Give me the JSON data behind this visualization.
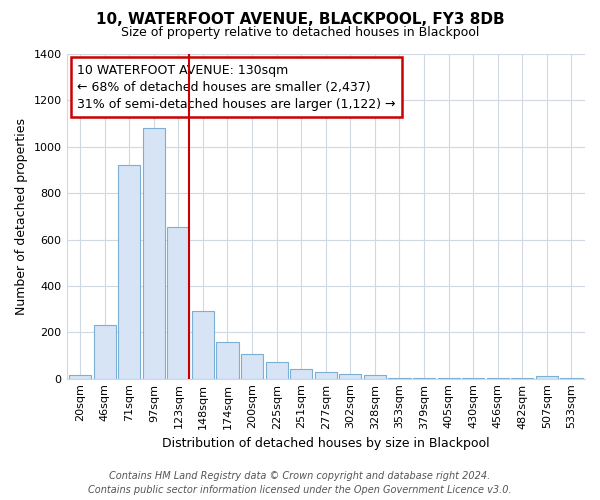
{
  "title": "10, WATERFOOT AVENUE, BLACKPOOL, FY3 8DB",
  "subtitle": "Size of property relative to detached houses in Blackpool",
  "xlabel": "Distribution of detached houses by size in Blackpool",
  "ylabel": "Number of detached properties",
  "bar_labels": [
    "20sqm",
    "46sqm",
    "71sqm",
    "97sqm",
    "123sqm",
    "148sqm",
    "174sqm",
    "200sqm",
    "225sqm",
    "251sqm",
    "277sqm",
    "302sqm",
    "328sqm",
    "353sqm",
    "379sqm",
    "405sqm",
    "430sqm",
    "456sqm",
    "482sqm",
    "507sqm",
    "533sqm"
  ],
  "bar_values": [
    15,
    230,
    920,
    1080,
    655,
    290,
    158,
    108,
    70,
    42,
    27,
    20,
    17,
    5,
    3,
    2,
    1,
    1,
    1,
    13,
    2
  ],
  "bar_color": "#d6e4f5",
  "bar_edge_color": "#7bafd4",
  "vline_index": 4,
  "vline_color": "#cc0000",
  "annotation_line1": "10 WATERFOOT AVENUE: 130sqm",
  "annotation_line2": "← 68% of detached houses are smaller (2,437)",
  "annotation_line3": "31% of semi-detached houses are larger (1,122) →",
  "annotation_box_color": "#ffffff",
  "annotation_box_edge_color": "#cc0000",
  "ylim": [
    0,
    1400
  ],
  "yticks": [
    0,
    200,
    400,
    600,
    800,
    1000,
    1200,
    1400
  ],
  "footer_line1": "Contains HM Land Registry data © Crown copyright and database right 2024.",
  "footer_line2": "Contains public sector information licensed under the Open Government Licence v3.0.",
  "bg_color": "#ffffff",
  "grid_color": "#d0d8e4",
  "title_fontsize": 11,
  "subtitle_fontsize": 9,
  "ylabel_fontsize": 9,
  "xlabel_fontsize": 9,
  "tick_fontsize": 8,
  "annot_fontsize": 9,
  "footer_fontsize": 7
}
